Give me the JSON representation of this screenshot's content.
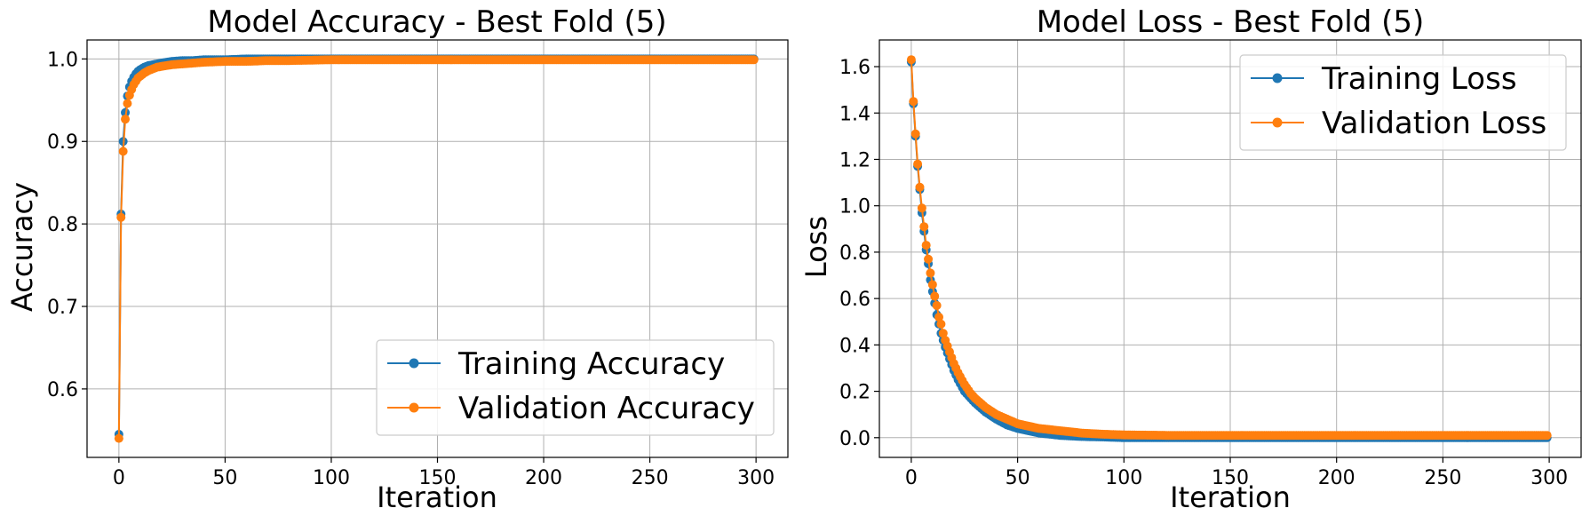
{
  "colors": {
    "training": "#1f77b4",
    "validation": "#ff7f0e"
  },
  "chart_data": [
    {
      "type": "line",
      "title": "Model Accuracy - Best Fold (5)",
      "xlabel": "Iteration",
      "ylabel": "Accuracy",
      "xlim": [
        -15,
        315
      ],
      "ylim": [
        0.517,
        1.023
      ],
      "xticks": [
        0,
        50,
        100,
        150,
        200,
        250,
        300
      ],
      "yticks": [
        0.6,
        0.7,
        0.8,
        0.9,
        1.0
      ],
      "xtick_labels": [
        "0",
        "50",
        "100",
        "150",
        "200",
        "250",
        "300"
      ],
      "ytick_labels": [
        "0.6",
        "0.7",
        "0.8",
        "0.9",
        "1.0"
      ],
      "grid": true,
      "legend_position": "lower-right",
      "series": [
        {
          "name": "Training Accuracy",
          "color": "#1f77b4",
          "marker": "circle",
          "x": [
            0,
            1,
            2,
            3,
            4,
            5,
            6,
            7,
            8,
            9,
            10,
            12,
            14,
            16,
            18,
            20,
            25,
            30,
            35,
            40,
            50,
            60,
            70,
            80,
            100,
            120,
            150,
            200,
            250,
            299
          ],
          "y": [
            0.545,
            0.812,
            0.9,
            0.935,
            0.955,
            0.966,
            0.973,
            0.978,
            0.982,
            0.985,
            0.987,
            0.99,
            0.992,
            0.993,
            0.994,
            0.995,
            0.997,
            0.998,
            0.998,
            0.999,
            0.999,
            1.0,
            1.0,
            1.0,
            1.0,
            1.0,
            1.0,
            1.0,
            1.0,
            1.0
          ]
        },
        {
          "name": "Validation Accuracy",
          "color": "#ff7f0e",
          "marker": "circle",
          "x": [
            0,
            1,
            2,
            3,
            4,
            5,
            6,
            7,
            8,
            9,
            10,
            12,
            14,
            16,
            18,
            20,
            25,
            30,
            35,
            40,
            50,
            60,
            70,
            80,
            100,
            120,
            150,
            200,
            250,
            299
          ],
          "y": [
            0.54,
            0.808,
            0.888,
            0.927,
            0.946,
            0.956,
            0.963,
            0.969,
            0.973,
            0.977,
            0.979,
            0.983,
            0.986,
            0.988,
            0.99,
            0.991,
            0.993,
            0.994,
            0.995,
            0.996,
            0.997,
            0.997,
            0.998,
            0.998,
            0.999,
            0.999,
            0.999,
            0.999,
            0.999,
            0.999
          ]
        }
      ]
    },
    {
      "type": "line",
      "title": "Model Loss - Best Fold (5)",
      "xlabel": "Iteration",
      "ylabel": "Loss",
      "xlim": [
        -15,
        315
      ],
      "ylim": [
        -0.085,
        1.715
      ],
      "xticks": [
        0,
        50,
        100,
        150,
        200,
        250,
        300
      ],
      "yticks": [
        0.0,
        0.2,
        0.4,
        0.6,
        0.8,
        1.0,
        1.2,
        1.4,
        1.6
      ],
      "xtick_labels": [
        "0",
        "50",
        "100",
        "150",
        "200",
        "250",
        "300"
      ],
      "ytick_labels": [
        "0.0",
        "0.2",
        "0.4",
        "0.6",
        "0.8",
        "1.0",
        "1.2",
        "1.4",
        "1.6"
      ],
      "grid": true,
      "legend_position": "upper-right",
      "series": [
        {
          "name": "Training Loss",
          "color": "#1f77b4",
          "marker": "circle",
          "x": [
            0,
            1,
            2,
            3,
            4,
            5,
            6,
            7,
            8,
            9,
            10,
            11,
            12,
            13,
            14,
            15,
            16,
            18,
            20,
            22,
            25,
            28,
            30,
            35,
            40,
            45,
            50,
            60,
            70,
            80,
            90,
            100,
            130,
            150,
            200,
            250,
            299
          ],
          "y": [
            1.62,
            1.44,
            1.3,
            1.17,
            1.07,
            0.97,
            0.89,
            0.81,
            0.75,
            0.68,
            0.63,
            0.58,
            0.53,
            0.49,
            0.45,
            0.42,
            0.39,
            0.34,
            0.29,
            0.25,
            0.2,
            0.17,
            0.15,
            0.11,
            0.08,
            0.055,
            0.04,
            0.02,
            0.01,
            0.005,
            0.003,
            0.0,
            0.0,
            0.0,
            0.0,
            0.0,
            0.0
          ]
        },
        {
          "name": "Validation Loss",
          "color": "#ff7f0e",
          "marker": "circle",
          "x": [
            0,
            1,
            2,
            3,
            4,
            5,
            6,
            7,
            8,
            9,
            10,
            11,
            12,
            13,
            14,
            15,
            16,
            18,
            20,
            22,
            25,
            28,
            30,
            35,
            40,
            45,
            50,
            60,
            70,
            80,
            90,
            100,
            120,
            150,
            200,
            250,
            299
          ],
          "y": [
            1.63,
            1.45,
            1.31,
            1.18,
            1.08,
            0.99,
            0.91,
            0.83,
            0.77,
            0.71,
            0.66,
            0.61,
            0.57,
            0.52,
            0.49,
            0.45,
            0.42,
            0.37,
            0.32,
            0.28,
            0.23,
            0.19,
            0.17,
            0.13,
            0.1,
            0.08,
            0.06,
            0.04,
            0.03,
            0.02,
            0.015,
            0.012,
            0.01,
            0.01,
            0.01,
            0.01,
            0.01
          ]
        }
      ]
    }
  ]
}
